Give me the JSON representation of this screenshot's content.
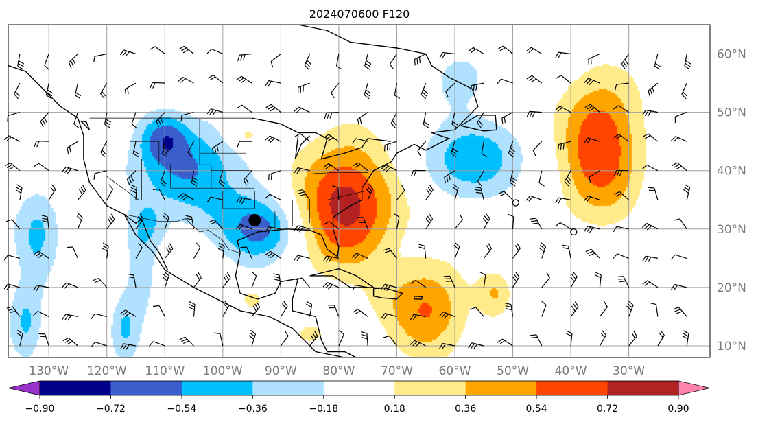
{
  "title": "2024070600 F120",
  "map": {
    "lon_range": [
      -137,
      -16
    ],
    "lat_range": [
      8,
      65
    ],
    "grid_lons": [
      -130,
      -120,
      -110,
      -100,
      -90,
      -80,
      -70,
      -60,
      -50,
      -40,
      -30
    ],
    "grid_lats": [
      10,
      20,
      30,
      40,
      50,
      60
    ],
    "lon_labels": [
      "130°W",
      "120°W",
      "110°W",
      "100°W",
      "90°W",
      "80°W",
      "70°W",
      "60°W",
      "50°W",
      "40°W",
      "30°W"
    ],
    "lat_labels": [
      "10°N",
      "20°N",
      "30°N",
      "40°N",
      "50°N",
      "60°N"
    ],
    "marker": {
      "lon": -94.5,
      "lat": 31.5,
      "label": ""
    },
    "open_circles": [
      {
        "lon": -49.5,
        "lat": 34.5
      },
      {
        "lon": -39.5,
        "lat": 29.5
      }
    ]
  },
  "colorbar": {
    "ticks": [
      "−0.90",
      "−0.72",
      "−0.54",
      "−0.36",
      "−0.18",
      "0.18",
      "0.36",
      "0.54",
      "0.72",
      "0.90"
    ],
    "colors": [
      "#9932cc",
      "#00008b",
      "#3a5fcd",
      "#00bfff",
      "#b0e2ff",
      "#ffffff",
      "#ffeb8a",
      "#ffa500",
      "#ff4500",
      "#b22222",
      "#ff82ab"
    ],
    "extend": "both"
  },
  "fields": {
    "levels": [
      -0.9,
      -0.72,
      -0.54,
      -0.36,
      -0.18,
      0.18,
      0.36,
      0.54,
      0.72,
      0.9
    ],
    "negative_blobs": [
      {
        "name": "us-west-trough",
        "lon": -106,
        "lat": 40,
        "rx": 10,
        "ry": 8,
        "peak": -0.55
      },
      {
        "name": "idaho-trough",
        "lon": -110,
        "lat": 46,
        "rx": 4,
        "ry": 4,
        "peak": -0.42
      },
      {
        "name": "texas-low",
        "lon": -93.5,
        "lat": 30,
        "rx": 7,
        "ry": 6,
        "peak": -0.64
      },
      {
        "name": "atlantic-canada-low",
        "lon": -57,
        "lat": 42,
        "rx": 9,
        "ry": 7,
        "peak": -0.5
      },
      {
        "name": "labrador-trough",
        "lon": -59,
        "lat": 56,
        "rx": 5,
        "ry": 5,
        "peak": -0.25
      },
      {
        "name": "pacific-trough",
        "lon": -132,
        "lat": 29,
        "rx": 4,
        "ry": 8,
        "peak": -0.4
      },
      {
        "name": "pacific-sw",
        "lon": -134,
        "lat": 14,
        "rx": 3,
        "ry": 7,
        "peak": -0.38
      },
      {
        "name": "mexico-coast",
        "lon": -114,
        "lat": 22,
        "rx": 3,
        "ry": 10,
        "peak": -0.25
      },
      {
        "name": "baja-trough",
        "lon": -113,
        "lat": 31,
        "rx": 3,
        "ry": 4,
        "peak": -0.25
      },
      {
        "name": "east-pacific",
        "lon": -117,
        "lat": 13,
        "rx": 2.5,
        "ry": 6,
        "peak": -0.35
      }
    ],
    "positive_blobs": [
      {
        "name": "us-east-ridge",
        "lon": -79,
        "lat": 34,
        "rx": 9,
        "ry": 11,
        "peak": 0.8
      },
      {
        "name": "mid-atlantic-ridge",
        "lon": -35,
        "lat": 44,
        "rx": 7,
        "ry": 12,
        "peak": 0.72
      },
      {
        "name": "caribbean-ridge",
        "lon": -65,
        "lat": 16,
        "rx": 7,
        "ry": 8,
        "peak": 0.55
      },
      {
        "name": "north-plains",
        "lon": -96,
        "lat": 46,
        "rx": 3,
        "ry": 2.5,
        "peak": 0.3
      },
      {
        "name": "central-atlantic",
        "lon": -53,
        "lat": 19,
        "rx": 3,
        "ry": 4,
        "peak": 0.35
      },
      {
        "name": "gulf-of-mexico",
        "lon": -95,
        "lat": 18,
        "rx": 3,
        "ry": 3,
        "peak": 0.22
      },
      {
        "name": "western-caribbean",
        "lon": -85,
        "lat": 12,
        "rx": 3,
        "ry": 2,
        "peak": 0.22
      }
    ],
    "wind_barbs": "grid spaced 5° lon × 5° lat"
  }
}
